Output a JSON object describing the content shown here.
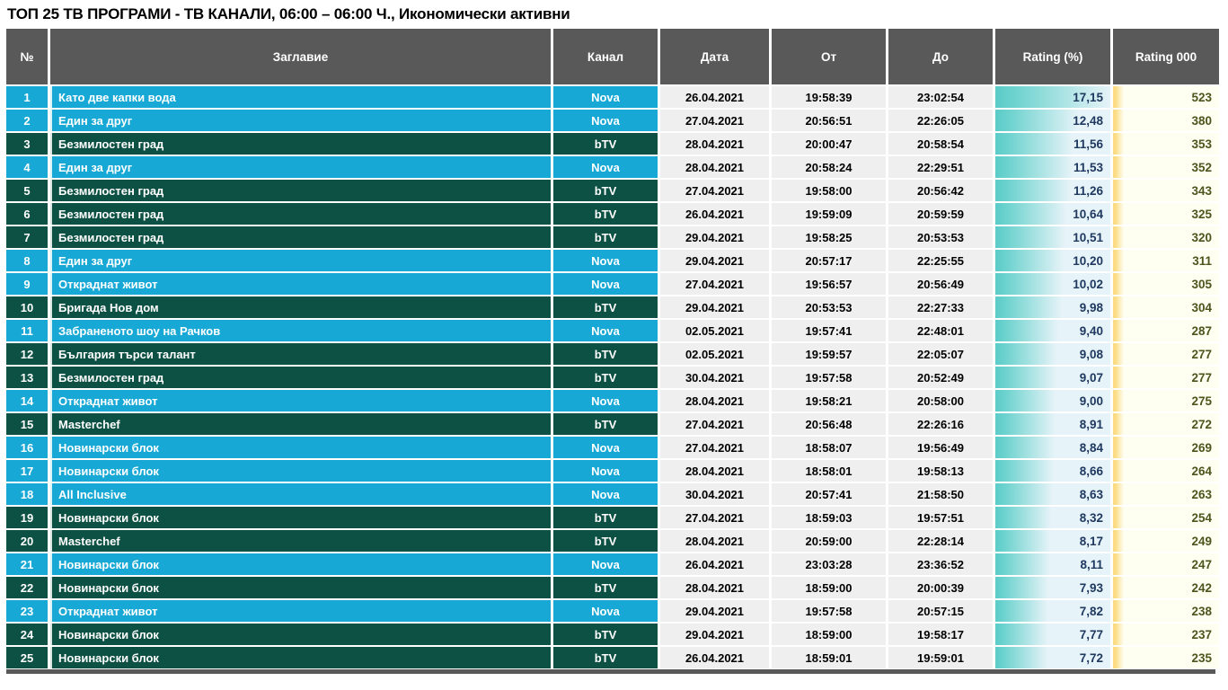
{
  "title": "ТОП 25 ТВ ПРОГРАМИ - ТВ КАНАЛИ, 06:00 – 06:00 Ч., Икономически активни",
  "colors": {
    "nova_row": "#17a8d6",
    "btv_row": "#0d5044",
    "header_bg": "#595959",
    "rating_bar": "#5accc8",
    "rating_cell_bg": "#e6f3f8",
    "rating_value_text": "#1f3960",
    "rating000_bar": "#fbdc82",
    "rating000_cell_bg": "#fefef1",
    "rating000_value_text": "#4d551d",
    "datetime_cell_bg": "#efefef"
  },
  "chart_data": {
    "type": "table",
    "title": "ТОП 25 ТВ ПРОГРАМИ - ТВ КАНАЛИ, 06:00 – 06:00 Ч., Икономически активни",
    "columns": [
      "№",
      "Заглавие",
      "Канал",
      "Дата",
      "От",
      "До",
      "Rating (%)",
      "Rating 000"
    ],
    "rating_bar_axis": {
      "min": 0,
      "max": 17.15
    },
    "rows": [
      {
        "no": "1",
        "title": "Като две капки вода",
        "channel": "Nova",
        "date": "26.04.2021",
        "from": "19:58:39",
        "to": "23:02:54",
        "rating_pct": "17,15",
        "rating_000": "523"
      },
      {
        "no": "2",
        "title": "Един за друг",
        "channel": "Nova",
        "date": "27.04.2021",
        "from": "20:56:51",
        "to": "22:26:05",
        "rating_pct": "12,48",
        "rating_000": "380"
      },
      {
        "no": "3",
        "title": "Безмилостен град",
        "channel": "bTV",
        "date": "28.04.2021",
        "from": "20:00:47",
        "to": "20:58:54",
        "rating_pct": "11,56",
        "rating_000": "353"
      },
      {
        "no": "4",
        "title": "Един за друг",
        "channel": "Nova",
        "date": "28.04.2021",
        "from": "20:58:24",
        "to": "22:29:51",
        "rating_pct": "11,53",
        "rating_000": "352"
      },
      {
        "no": "5",
        "title": "Безмилостен град",
        "channel": "bTV",
        "date": "27.04.2021",
        "from": "19:58:00",
        "to": "20:56:42",
        "rating_pct": "11,26",
        "rating_000": "343"
      },
      {
        "no": "6",
        "title": "Безмилостен град",
        "channel": "bTV",
        "date": "26.04.2021",
        "from": "19:59:09",
        "to": "20:59:59",
        "rating_pct": "10,64",
        "rating_000": "325"
      },
      {
        "no": "7",
        "title": "Безмилостен град",
        "channel": "bTV",
        "date": "29.04.2021",
        "from": "19:58:25",
        "to": "20:53:53",
        "rating_pct": "10,51",
        "rating_000": "320"
      },
      {
        "no": "8",
        "title": "Един за друг",
        "channel": "Nova",
        "date": "29.04.2021",
        "from": "20:57:17",
        "to": "22:25:55",
        "rating_pct": "10,20",
        "rating_000": "311"
      },
      {
        "no": "9",
        "title": "Откраднат живот",
        "channel": "Nova",
        "date": "27.04.2021",
        "from": "19:56:57",
        "to": "20:56:49",
        "rating_pct": "10,02",
        "rating_000": "305"
      },
      {
        "no": "10",
        "title": "Бригада Нов дом",
        "channel": "bTV",
        "date": "29.04.2021",
        "from": "20:53:53",
        "to": "22:27:33",
        "rating_pct": "9,98",
        "rating_000": "304"
      },
      {
        "no": "11",
        "title": "Забраненото шоу на Рачков",
        "channel": "Nova",
        "date": "02.05.2021",
        "from": "19:57:41",
        "to": "22:48:01",
        "rating_pct": "9,40",
        "rating_000": "287"
      },
      {
        "no": "12",
        "title": "България търси талант",
        "channel": "bTV",
        "date": "02.05.2021",
        "from": "19:59:57",
        "to": "22:05:07",
        "rating_pct": "9,08",
        "rating_000": "277"
      },
      {
        "no": "13",
        "title": "Безмилостен град",
        "channel": "bTV",
        "date": "30.04.2021",
        "from": "19:57:58",
        "to": "20:52:49",
        "rating_pct": "9,07",
        "rating_000": "277"
      },
      {
        "no": "14",
        "title": "Откраднат живот",
        "channel": "Nova",
        "date": "28.04.2021",
        "from": "19:58:21",
        "to": "20:58:00",
        "rating_pct": "9,00",
        "rating_000": "275"
      },
      {
        "no": "15",
        "title": "Masterchef",
        "channel": "bTV",
        "date": "27.04.2021",
        "from": "20:56:48",
        "to": "22:26:16",
        "rating_pct": "8,91",
        "rating_000": "272"
      },
      {
        "no": "16",
        "title": "Новинарски блок",
        "channel": "Nova",
        "date": "27.04.2021",
        "from": "18:58:07",
        "to": "19:56:49",
        "rating_pct": "8,84",
        "rating_000": "269"
      },
      {
        "no": "17",
        "title": "Новинарски блок",
        "channel": "Nova",
        "date": "28.04.2021",
        "from": "18:58:01",
        "to": "19:58:13",
        "rating_pct": "8,66",
        "rating_000": "264"
      },
      {
        "no": "18",
        "title": "All Inclusive",
        "channel": "Nova",
        "date": "30.04.2021",
        "from": "20:57:41",
        "to": "21:58:50",
        "rating_pct": "8,63",
        "rating_000": "263"
      },
      {
        "no": "19",
        "title": "Новинарски блок",
        "channel": "bTV",
        "date": "27.04.2021",
        "from": "18:59:03",
        "to": "19:57:51",
        "rating_pct": "8,32",
        "rating_000": "254"
      },
      {
        "no": "20",
        "title": "Masterchef",
        "channel": "bTV",
        "date": "28.04.2021",
        "from": "20:59:00",
        "to": "22:28:14",
        "rating_pct": "8,17",
        "rating_000": "249"
      },
      {
        "no": "21",
        "title": "Новинарски блок",
        "channel": "Nova",
        "date": "26.04.2021",
        "from": "23:03:28",
        "to": "23:36:52",
        "rating_pct": "8,11",
        "rating_000": "247"
      },
      {
        "no": "22",
        "title": "Новинарски блок",
        "channel": "bTV",
        "date": "28.04.2021",
        "from": "18:59:00",
        "to": "20:00:39",
        "rating_pct": "7,93",
        "rating_000": "242"
      },
      {
        "no": "23",
        "title": "Откраднат живот",
        "channel": "Nova",
        "date": "29.04.2021",
        "from": "19:57:58",
        "to": "20:57:15",
        "rating_pct": "7,82",
        "rating_000": "238"
      },
      {
        "no": "24",
        "title": "Новинарски блок",
        "channel": "bTV",
        "date": "29.04.2021",
        "from": "18:59:00",
        "to": "19:58:17",
        "rating_pct": "7,77",
        "rating_000": "237"
      },
      {
        "no": "25",
        "title": "Новинарски блок",
        "channel": "bTV",
        "date": "26.04.2021",
        "from": "18:59:01",
        "to": "19:59:01",
        "rating_pct": "7,72",
        "rating_000": "235"
      }
    ]
  }
}
